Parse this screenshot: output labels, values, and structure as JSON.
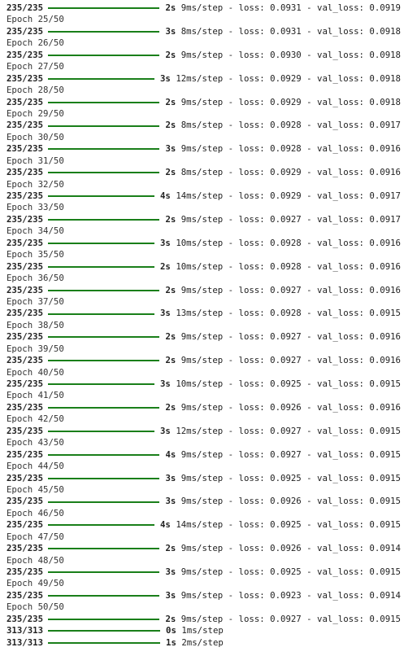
{
  "console": {
    "lines": [
      {
        "type": "progress",
        "count": "235/235",
        "duration": "2s",
        "rest": "9ms/step - loss: 0.0931 - val_loss: 0.0919"
      },
      {
        "type": "epoch",
        "text": "Epoch 25/50"
      },
      {
        "type": "progress",
        "count": "235/235",
        "duration": "3s",
        "rest": "8ms/step - loss: 0.0931 - val_loss: 0.0918"
      },
      {
        "type": "epoch",
        "text": "Epoch 26/50"
      },
      {
        "type": "progress",
        "count": "235/235",
        "duration": "2s",
        "rest": "9ms/step - loss: 0.0930 - val_loss: 0.0918"
      },
      {
        "type": "epoch",
        "text": "Epoch 27/50"
      },
      {
        "type": "progress",
        "count": "235/235",
        "duration": "3s",
        "rest": "12ms/step - loss: 0.0929 - val_loss: 0.0918"
      },
      {
        "type": "epoch",
        "text": "Epoch 28/50"
      },
      {
        "type": "progress",
        "count": "235/235",
        "duration": "2s",
        "rest": "9ms/step - loss: 0.0929 - val_loss: 0.0918"
      },
      {
        "type": "epoch",
        "text": "Epoch 29/50"
      },
      {
        "type": "progress",
        "count": "235/235",
        "duration": "2s",
        "rest": "8ms/step - loss: 0.0928 - val_loss: 0.0917"
      },
      {
        "type": "epoch",
        "text": "Epoch 30/50"
      },
      {
        "type": "progress",
        "count": "235/235",
        "duration": "3s",
        "rest": "9ms/step - loss: 0.0928 - val_loss: 0.0916"
      },
      {
        "type": "epoch",
        "text": "Epoch 31/50"
      },
      {
        "type": "progress",
        "count": "235/235",
        "duration": "2s",
        "rest": "8ms/step - loss: 0.0929 - val_loss: 0.0916"
      },
      {
        "type": "epoch",
        "text": "Epoch 32/50"
      },
      {
        "type": "progress",
        "count": "235/235",
        "duration": "4s",
        "rest": "14ms/step - loss: 0.0929 - val_loss: 0.0917"
      },
      {
        "type": "epoch",
        "text": "Epoch 33/50"
      },
      {
        "type": "progress",
        "count": "235/235",
        "duration": "2s",
        "rest": "9ms/step - loss: 0.0927 - val_loss: 0.0917"
      },
      {
        "type": "epoch",
        "text": "Epoch 34/50"
      },
      {
        "type": "progress",
        "count": "235/235",
        "duration": "3s",
        "rest": "10ms/step - loss: 0.0928 - val_loss: 0.0916"
      },
      {
        "type": "epoch",
        "text": "Epoch 35/50"
      },
      {
        "type": "progress",
        "count": "235/235",
        "duration": "2s",
        "rest": "10ms/step - loss: 0.0928 - val_loss: 0.0916"
      },
      {
        "type": "epoch",
        "text": "Epoch 36/50"
      },
      {
        "type": "progress",
        "count": "235/235",
        "duration": "2s",
        "rest": "9ms/step - loss: 0.0927 - val_loss: 0.0916"
      },
      {
        "type": "epoch",
        "text": "Epoch 37/50"
      },
      {
        "type": "progress",
        "count": "235/235",
        "duration": "3s",
        "rest": "13ms/step - loss: 0.0928 - val_loss: 0.0915"
      },
      {
        "type": "epoch",
        "text": "Epoch 38/50"
      },
      {
        "type": "progress",
        "count": "235/235",
        "duration": "2s",
        "rest": "9ms/step - loss: 0.0927 - val_loss: 0.0916"
      },
      {
        "type": "epoch",
        "text": "Epoch 39/50"
      },
      {
        "type": "progress",
        "count": "235/235",
        "duration": "2s",
        "rest": "9ms/step - loss: 0.0927 - val_loss: 0.0916"
      },
      {
        "type": "epoch",
        "text": "Epoch 40/50"
      },
      {
        "type": "progress",
        "count": "235/235",
        "duration": "3s",
        "rest": "10ms/step - loss: 0.0925 - val_loss: 0.0915"
      },
      {
        "type": "epoch",
        "text": "Epoch 41/50"
      },
      {
        "type": "progress",
        "count": "235/235",
        "duration": "2s",
        "rest": "9ms/step - loss: 0.0926 - val_loss: 0.0916"
      },
      {
        "type": "epoch",
        "text": "Epoch 42/50"
      },
      {
        "type": "progress",
        "count": "235/235",
        "duration": "3s",
        "rest": "12ms/step - loss: 0.0927 - val_loss: 0.0915"
      },
      {
        "type": "epoch",
        "text": "Epoch 43/50"
      },
      {
        "type": "progress",
        "count": "235/235",
        "duration": "4s",
        "rest": "9ms/step - loss: 0.0927 - val_loss: 0.0915"
      },
      {
        "type": "epoch",
        "text": "Epoch 44/50"
      },
      {
        "type": "progress",
        "count": "235/235",
        "duration": "3s",
        "rest": "9ms/step - loss: 0.0925 - val_loss: 0.0915"
      },
      {
        "type": "epoch",
        "text": "Epoch 45/50"
      },
      {
        "type": "progress",
        "count": "235/235",
        "duration": "3s",
        "rest": "9ms/step - loss: 0.0926 - val_loss: 0.0915"
      },
      {
        "type": "epoch",
        "text": "Epoch 46/50"
      },
      {
        "type": "progress",
        "count": "235/235",
        "duration": "4s",
        "rest": "14ms/step - loss: 0.0925 - val_loss: 0.0915"
      },
      {
        "type": "epoch",
        "text": "Epoch 47/50"
      },
      {
        "type": "progress",
        "count": "235/235",
        "duration": "2s",
        "rest": "9ms/step - loss: 0.0926 - val_loss: 0.0914"
      },
      {
        "type": "epoch",
        "text": "Epoch 48/50"
      },
      {
        "type": "progress",
        "count": "235/235",
        "duration": "3s",
        "rest": "9ms/step - loss: 0.0925 - val_loss: 0.0915"
      },
      {
        "type": "epoch",
        "text": "Epoch 49/50"
      },
      {
        "type": "progress",
        "count": "235/235",
        "duration": "3s",
        "rest": "9ms/step - loss: 0.0923 - val_loss: 0.0914"
      },
      {
        "type": "epoch",
        "text": "Epoch 50/50"
      },
      {
        "type": "progress",
        "count": "235/235",
        "duration": "2s",
        "rest": "9ms/step - loss: 0.0927 - val_loss: 0.0915"
      },
      {
        "type": "progress",
        "count": "313/313",
        "duration": "0s",
        "rest": "1ms/step"
      },
      {
        "type": "progress",
        "count": "313/313",
        "duration": "1s",
        "rest": "2ms/step"
      }
    ]
  },
  "colors": {
    "progress_bar": "#1a7f1a",
    "text": "#222222",
    "background": "#ffffff"
  }
}
